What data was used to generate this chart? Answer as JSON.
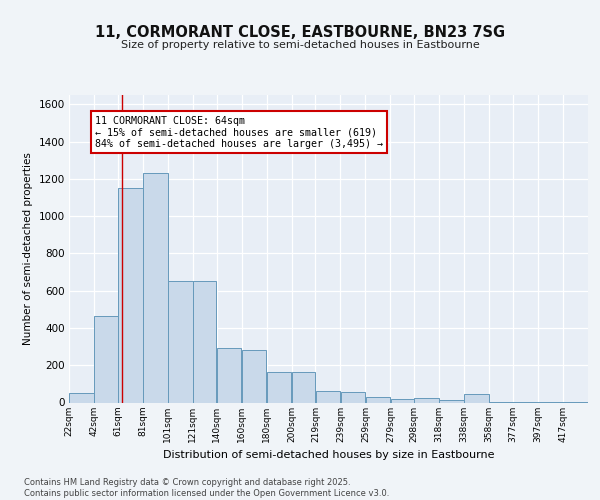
{
  "title": "11, CORMORANT CLOSE, EASTBOURNE, BN23 7SG",
  "subtitle": "Size of property relative to semi-detached houses in Eastbourne",
  "xlabel": "Distribution of semi-detached houses by size in Eastbourne",
  "ylabel": "Number of semi-detached properties",
  "footer": "Contains HM Land Registry data © Crown copyright and database right 2025.\nContains public sector information licensed under the Open Government Licence v3.0.",
  "bar_color": "#c9d9ea",
  "bar_edge_color": "#6699bb",
  "bg_color": "#e8eef6",
  "grid_color": "#ffffff",
  "fig_bg_color": "#f0f4f8",
  "property_line_color": "#cc0000",
  "property_size": 64,
  "annotation_text": "11 CORMORANT CLOSE: 64sqm\n← 15% of semi-detached houses are smaller (619)\n84% of semi-detached houses are larger (3,495) →",
  "annotation_box_color": "#ffffff",
  "annotation_box_edge": "#cc0000",
  "bins": [
    22,
    42,
    61,
    81,
    101,
    121,
    140,
    160,
    180,
    200,
    219,
    239,
    259,
    279,
    298,
    318,
    338,
    358,
    377,
    397,
    417
  ],
  "bin_labels": [
    "22sqm",
    "42sqm",
    "61sqm",
    "81sqm",
    "101sqm",
    "121sqm",
    "140sqm",
    "160sqm",
    "180sqm",
    "200sqm",
    "219sqm",
    "239sqm",
    "259sqm",
    "279sqm",
    "298sqm",
    "318sqm",
    "338sqm",
    "358sqm",
    "377sqm",
    "397sqm",
    "417sqm"
  ],
  "counts": [
    50,
    465,
    1150,
    1230,
    650,
    650,
    290,
    280,
    165,
    165,
    60,
    55,
    28,
    18,
    25,
    15,
    45,
    5,
    4,
    4,
    4
  ],
  "ylim": [
    0,
    1650
  ],
  "yticks": [
    0,
    200,
    400,
    600,
    800,
    1000,
    1200,
    1400,
    1600
  ]
}
